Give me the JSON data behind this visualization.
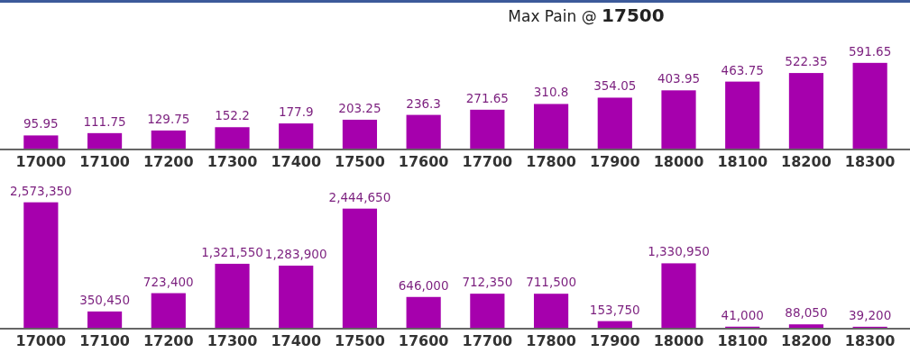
{
  "chart_data": [
    {
      "type": "bar",
      "title": "Max Pain @ 17500",
      "categories": [
        "17000",
        "17100",
        "17200",
        "17300",
        "17400",
        "17500",
        "17600",
        "17700",
        "17800",
        "17900",
        "18000",
        "18100",
        "18200",
        "18300"
      ],
      "values": [
        95.95,
        111.75,
        129.75,
        152.2,
        177.9,
        203.25,
        236.3,
        271.65,
        310.8,
        354.05,
        403.95,
        463.75,
        522.35,
        591.65
      ],
      "color": "#a600ad",
      "data_labels": true,
      "tick_labels": "x"
    },
    {
      "type": "bar",
      "categories": [
        "17000",
        "17100",
        "17200",
        "17300",
        "17400",
        "17500",
        "17600",
        "17700",
        "17800",
        "17900",
        "18000",
        "18100",
        "18200",
        "18300"
      ],
      "values": [
        2573350,
        350450,
        723400,
        1321550,
        1283900,
        2444650,
        646000,
        712350,
        711500,
        153750,
        1330950,
        41000,
        88050,
        39200
      ],
      "value_labels": [
        "2,573,350",
        "350,450",
        "723,400",
        "1,321,550",
        "1,283,900",
        "2,444,650",
        "646,000",
        "712,350",
        "711,500",
        "153,750",
        "1,330,950",
        "41,000",
        "88,050",
        "39,200"
      ],
      "color": "#a600ad",
      "tick_labels": "x"
    }
  ]
}
